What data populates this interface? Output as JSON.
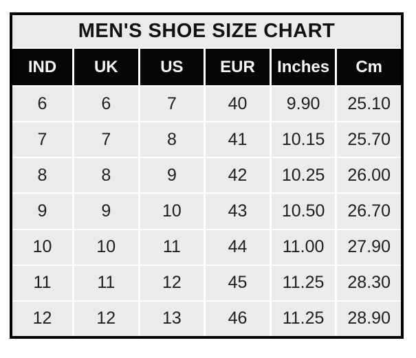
{
  "chart_data": {
    "type": "table",
    "title": "MEN'S SHOE SIZE CHART",
    "columns": [
      "IND",
      "UK",
      "US",
      "EUR",
      "Inches",
      "Cm"
    ],
    "rows": [
      [
        "6",
        "6",
        "7",
        "40",
        "9.90",
        "25.10"
      ],
      [
        "7",
        "7",
        "8",
        "41",
        "10.15",
        "25.70"
      ],
      [
        "8",
        "8",
        "9",
        "42",
        "10.25",
        "26.00"
      ],
      [
        "9",
        "9",
        "10",
        "43",
        "10.50",
        "26.70"
      ],
      [
        "10",
        "10",
        "11",
        "44",
        "11.00",
        "27.90"
      ],
      [
        "11",
        "11",
        "12",
        "45",
        "11.25",
        "28.30"
      ],
      [
        "12",
        "12",
        "13",
        "46",
        "11.25",
        "28.90"
      ]
    ]
  },
  "colors": {
    "border": "#000000",
    "grid_line": "#ffffff",
    "cell_bg": "#ebebeb",
    "cell_text": "#1e1e1e",
    "header_bg": "#060606",
    "header_text": "#f7f7f2",
    "title_text": "#111111"
  }
}
